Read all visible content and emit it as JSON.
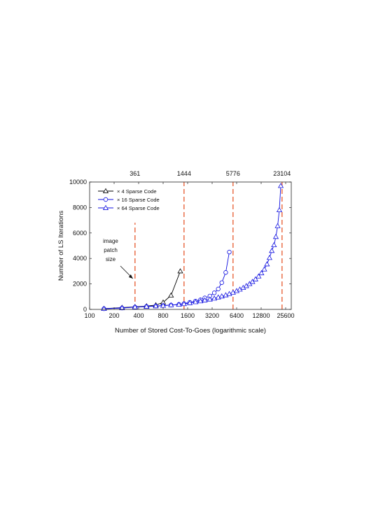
{
  "chart_data": {
    "type": "line",
    "xscale": "log2",
    "xlim": [
      100,
      30000
    ],
    "ylim": [
      0,
      10000
    ],
    "xticks": [
      100,
      200,
      400,
      800,
      1600,
      3200,
      6400,
      12800,
      25600
    ],
    "yticks": [
      0,
      2000,
      4000,
      6000,
      8000,
      10000
    ],
    "xlabel": "Number of Stored Cost-To-Goes (logarithmic scale)",
    "ylabel": "Number of LS Iterations",
    "grid": false,
    "legend_position": "top-left",
    "vlines": [
      {
        "x": 361,
        "label": "361",
        "ymax": 6800
      },
      {
        "x": 1444,
        "label": "1444",
        "ymax": 10000
      },
      {
        "x": 5776,
        "label": "5776",
        "ymax": 10000
      },
      {
        "x": 23104,
        "label": "23104",
        "ymax": 10000
      }
    ],
    "annotation": {
      "text_lines": [
        "image",
        "patch",
        "size"
      ],
      "points_to_x": 361
    },
    "series": [
      {
        "name": "× 4 Sparse Code",
        "color": "#000000",
        "marker": "triangle",
        "x": [
          150,
          250,
          361,
          500,
          650,
          800,
          1000,
          1300
        ],
        "y": [
          60,
          140,
          200,
          260,
          340,
          550,
          1100,
          3000
        ]
      },
      {
        "name": "× 16 Sparse Code",
        "color": "#1010e0",
        "marker": "circle",
        "x": [
          150,
          250,
          361,
          500,
          650,
          800,
          1000,
          1250,
          1444,
          1700,
          2000,
          2300,
          2600,
          3000,
          3400,
          3800,
          4200,
          4700,
          5200
        ],
        "y": [
          50,
          110,
          180,
          230,
          270,
          300,
          340,
          390,
          450,
          550,
          650,
          750,
          900,
          1050,
          1300,
          1600,
          2100,
          2900,
          4500
        ]
      },
      {
        "name": "× 64 Sparse Code",
        "color": "#1010e0",
        "marker": "triangle",
        "x": [
          150,
          250,
          361,
          500,
          650,
          800,
          1000,
          1250,
          1444,
          1700,
          2000,
          2300,
          2600,
          3000,
          3400,
          3800,
          4200,
          4700,
          5200,
          5776,
          6400,
          7000,
          7700,
          8400,
          9200,
          10000,
          10900,
          11900,
          12900,
          14000,
          15100,
          16200,
          17300,
          18400,
          19400,
          20400,
          21400
        ],
        "y": [
          50,
          110,
          180,
          220,
          260,
          300,
          340,
          380,
          430,
          500,
          580,
          650,
          720,
          790,
          860,
          950,
          1030,
          1120,
          1220,
          1330,
          1450,
          1570,
          1700,
          1840,
          2000,
          2170,
          2370,
          2600,
          2850,
          3150,
          3550,
          4050,
          4600,
          5050,
          5700,
          6550,
          7800
        ]
      }
    ],
    "series_last_point": {
      "x": 22300,
      "y": 9700
    }
  }
}
